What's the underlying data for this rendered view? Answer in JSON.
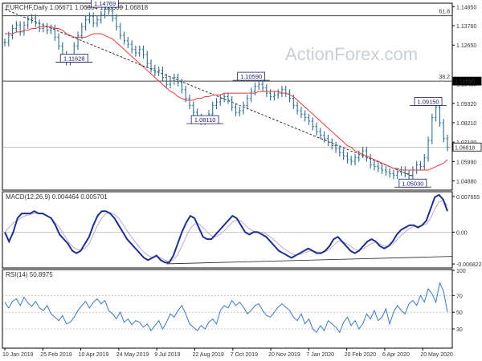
{
  "chart_data": [
    {
      "type": "candlestick",
      "panel": "price",
      "title": "EURCHF,Daily",
      "ohlc_header": {
        "open": "1.06671",
        "high": "1.06864",
        "low": "1.06500",
        "close": "1.06818"
      },
      "watermark": "ActionForex.com",
      "ylim": [
        1.044,
        1.15
      ],
      "yticks": [
        1.1485,
        1.1376,
        1.1265,
        1.1043,
        1.0932,
        1.0821,
        1.071,
        1.0599,
        1.0488
      ],
      "ytick_labels": [
        "1.14850",
        "1.13760",
        "1.12650",
        "1.10430",
        "1.09320",
        "1.08210",
        "1.07100",
        "1.05990",
        "1.04880"
      ],
      "x_labels": [
        "10 Jan 2019",
        "25 Feb 2019",
        "10 Apr 2019",
        "24 May 2019",
        "9 Jul 2019",
        "22 Aug 2019",
        "7 Oct 2019",
        "20 Nov 2019",
        "7 Jan 2020",
        "20 Feb 2020",
        "6 Apr 2020",
        "20 May 2020"
      ],
      "close": [
        1.128,
        1.132,
        1.136,
        1.138,
        1.134,
        1.138,
        1.141,
        1.142,
        1.139,
        1.136,
        1.137,
        1.135,
        1.136,
        1.131,
        1.126,
        1.121,
        1.117,
        1.119,
        1.126,
        1.132,
        1.137,
        1.141,
        1.143,
        1.139,
        1.141,
        1.144,
        1.147,
        1.146,
        1.142,
        1.137,
        1.132,
        1.129,
        1.127,
        1.124,
        1.122,
        1.124,
        1.121,
        1.116,
        1.113,
        1.111,
        1.112,
        1.108,
        1.104,
        1.106,
        1.108,
        1.105,
        1.101,
        1.096,
        1.092,
        1.088,
        1.085,
        1.083,
        1.084,
        1.087,
        1.092,
        1.094,
        1.096,
        1.097,
        1.095,
        1.091,
        1.088,
        1.089,
        1.092,
        1.096,
        1.1,
        1.103,
        1.104,
        1.102,
        1.099,
        1.097,
        1.098,
        1.099,
        1.101,
        1.099,
        1.096,
        1.092,
        1.089,
        1.087,
        1.085,
        1.083,
        1.08,
        1.077,
        1.075,
        1.073,
        1.071,
        1.069,
        1.067,
        1.065,
        1.063,
        1.061,
        1.06,
        1.062,
        1.064,
        1.066,
        1.062,
        1.058,
        1.057,
        1.056,
        1.055,
        1.054,
        1.053,
        1.052,
        1.054,
        1.055,
        1.053,
        1.052,
        1.055,
        1.058,
        1.057,
        1.062,
        1.072,
        1.085,
        1.091,
        1.082,
        1.073,
        1.068
      ],
      "series": [
        {
          "name": "MA",
          "color": "#e53a3a",
          "values": [
            1.133,
            1.133,
            1.133,
            1.134,
            1.134,
            1.135,
            1.135,
            1.136,
            1.136,
            1.137,
            1.137,
            1.137,
            1.137,
            1.136,
            1.136,
            1.135,
            1.133,
            1.132,
            1.131,
            1.131,
            1.131,
            1.131,
            1.132,
            1.133,
            1.133,
            1.133,
            1.132,
            1.131,
            1.13,
            1.128,
            1.126,
            1.124,
            1.122,
            1.12,
            1.118,
            1.116,
            1.114,
            1.112,
            1.11,
            1.108,
            1.106,
            1.104,
            1.102,
            1.1,
            1.099,
            1.097,
            1.096,
            1.095,
            1.095,
            1.095,
            1.096,
            1.096,
            1.097,
            1.097,
            1.098,
            1.098,
            1.098,
            1.099,
            1.099,
            1.099,
            1.099,
            1.099,
            1.099,
            1.099,
            1.099,
            1.099,
            1.1,
            1.1,
            1.1,
            1.1,
            1.1,
            1.1,
            1.099,
            1.099,
            1.098,
            1.097,
            1.095,
            1.093,
            1.091,
            1.089,
            1.087,
            1.085,
            1.083,
            1.081,
            1.079,
            1.077,
            1.075,
            1.073,
            1.071,
            1.069,
            1.068,
            1.066,
            1.065,
            1.064,
            1.063,
            1.062,
            1.061,
            1.06,
            1.059,
            1.058,
            1.057,
            1.056,
            1.056,
            1.055,
            1.055,
            1.055,
            1.055,
            1.055,
            1.055,
            1.055,
            1.055,
            1.056,
            1.057,
            1.058,
            1.059,
            1.061
          ]
        }
      ],
      "annotations": [
        {
          "text": "1.14769",
          "x_index": 26,
          "y": 1.1477
        },
        {
          "text": "1.11628",
          "x_index": 18,
          "y": 1.1163
        },
        {
          "text": "1.10590",
          "x_index": 64,
          "y": 1.1059
        },
        {
          "text": "1.08110",
          "x_index": 52,
          "y": 1.0811
        },
        {
          "text": "1.09150",
          "x_index": 110,
          "y": 1.0915
        },
        {
          "text": "1.05030",
          "x_index": 106,
          "y": 1.0503
        }
      ],
      "hlines": [
        {
          "y": 1.1433,
          "label": "61.8"
        },
        {
          "y": 1.1059,
          "label": "38.2"
        },
        {
          "y": 1.1059,
          "label": "1.10590"
        },
        {
          "y": 1.0682,
          "label": "1.06818"
        }
      ],
      "trendline": {
        "from": {
          "x_index": 0,
          "y": 1.147
        },
        "to": {
          "x_index": 106,
          "y": 1.0515
        }
      }
    },
    {
      "type": "line",
      "panel": "macd",
      "title": "MACD(12,26,9) 0.004464 0.005701",
      "ylim": [
        -0.0075,
        0.0085
      ],
      "yticks": [
        0.007655,
        0.0,
        -0.006822
      ],
      "ytick_labels": [
        "0.007655",
        "0.00",
        "-0.006822"
      ],
      "series": [
        {
          "name": "MACD",
          "values": [
            0.0,
            -0.002,
            0.0,
            0.003,
            0.004,
            0.004,
            0.004,
            0.0045,
            0.004,
            0.004,
            0.0035,
            0.003,
            0.0015,
            -0.0005,
            -0.0015,
            -0.0025,
            -0.004,
            -0.0045,
            -0.004,
            -0.0025,
            -0.001,
            0.0015,
            0.0035,
            0.0045,
            0.0045,
            0.004,
            0.003,
            0.0015,
            0.0,
            -0.0015,
            -0.0025,
            -0.0035,
            -0.0045,
            -0.0055,
            -0.006,
            -0.0055,
            -0.005,
            -0.006,
            -0.0065,
            -0.0065,
            -0.005,
            -0.0025,
            0.0,
            0.002,
            0.0035,
            0.003,
            0.001,
            -0.001,
            -0.0015,
            -0.0015,
            -0.0005,
            0.0005,
            0.0015,
            0.0025,
            0.0035,
            0.003,
            0.0015,
            0.0,
            -0.0005,
            0.0,
            0.0,
            -0.0005,
            -0.001,
            -0.002,
            -0.003,
            -0.004,
            -0.0045,
            -0.005,
            -0.0055,
            -0.005,
            -0.0045,
            -0.004,
            -0.0035,
            -0.004,
            -0.0045,
            -0.0045,
            -0.004,
            -0.003,
            -0.0015,
            -0.001,
            -0.002,
            -0.003,
            -0.004,
            -0.0045,
            -0.004,
            -0.003,
            -0.002,
            -0.0015,
            -0.002,
            -0.003,
            -0.0035,
            -0.003,
            -0.002,
            -0.0005,
            0.0005,
            0.001,
            0.0015,
            0.0015,
            0.001,
            0.0015,
            0.0025,
            0.005,
            0.0075,
            0.008,
            0.007,
            0.0045
          ]
        },
        {
          "name": "Signal",
          "values": [
            0.0,
            0.001,
            0.002,
            0.0025,
            0.0032,
            0.0036,
            0.0038,
            0.004,
            0.004,
            0.0039,
            0.0036,
            0.003,
            0.002,
            0.001,
            -0.0005,
            -0.002,
            -0.003,
            -0.0037,
            -0.0038,
            -0.0035,
            -0.0025,
            -0.0005,
            0.0015,
            0.003,
            0.004,
            0.0042,
            0.0038,
            0.003,
            0.0017,
            0.0003,
            -0.001,
            -0.0022,
            -0.0033,
            -0.0043,
            -0.005,
            -0.0054,
            -0.0052,
            -0.0055,
            -0.006,
            -0.0063,
            -0.006,
            -0.0048,
            -0.003,
            -0.001,
            0.0008,
            0.0018,
            0.0018,
            0.001,
            0.0,
            -0.0008,
            -0.001,
            -0.0005,
            0.0003,
            0.0012,
            0.0022,
            0.0026,
            0.0024,
            0.0015,
            0.0007,
            0.0002,
            0.0001,
            -0.0001,
            -0.0004,
            -0.001,
            -0.0018,
            -0.0026,
            -0.0034,
            -0.004,
            -0.0046,
            -0.0049,
            -0.0048,
            -0.0045,
            -0.0041,
            -0.004,
            -0.0042,
            -0.0043,
            -0.0042,
            -0.0037,
            -0.0028,
            -0.002,
            -0.002,
            -0.0024,
            -0.003,
            -0.0037,
            -0.0039,
            -0.0036,
            -0.003,
            -0.0024,
            -0.0022,
            -0.0025,
            -0.003,
            -0.003,
            -0.0026,
            -0.0016,
            -0.0007,
            0.0001,
            0.0008,
            0.0012,
            0.0013,
            0.0014,
            0.0018,
            0.003,
            0.005,
            0.0065,
            0.0068,
            0.0057
          ]
        }
      ],
      "trendline": {
        "from": {
          "x_index": 42,
          "y": -0.0068
        },
        "to": {
          "x_index": 106,
          "y": -0.0052
        }
      }
    },
    {
      "type": "line",
      "panel": "rsi",
      "title": "RSI(14) 50.8975",
      "ylim": [
        8,
        100
      ],
      "yticks": [
        100,
        70,
        50,
        30
      ],
      "ytick_labels": [
        "100",
        "70",
        "50",
        "30"
      ],
      "series": [
        {
          "name": "RSI",
          "values": [
            62,
            55,
            63,
            66,
            58,
            68,
            61,
            57,
            63,
            55,
            52,
            58,
            48,
            44,
            40,
            46,
            36,
            38,
            44,
            52,
            58,
            63,
            55,
            62,
            66,
            60,
            64,
            52,
            48,
            42,
            50,
            38,
            42,
            35,
            40,
            38,
            32,
            36,
            28,
            34,
            40,
            30,
            38,
            48,
            44,
            52,
            58,
            48,
            36,
            32,
            28,
            34,
            30,
            38,
            42,
            36,
            52,
            58,
            55,
            64,
            58,
            62,
            56,
            48,
            52,
            58,
            60,
            52,
            46,
            44,
            50,
            56,
            60,
            56,
            52,
            44,
            40,
            48,
            36,
            42,
            30,
            26,
            34,
            28,
            40,
            36,
            32,
            26,
            38,
            44,
            34,
            40,
            30,
            36,
            48,
            42,
            52,
            40,
            44,
            54,
            36,
            50,
            58,
            52,
            48,
            60,
            64,
            58,
            70,
            62,
            78,
            72,
            62,
            85,
            75,
            50
          ]
        }
      ]
    }
  ]
}
